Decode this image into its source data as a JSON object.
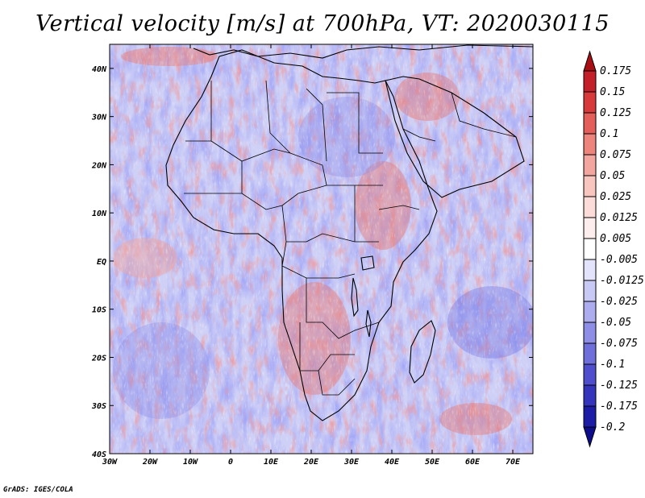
{
  "title": "Vertical velocity [m/s] at 700hPa, VT: 2020030115",
  "credit": "GrADS: IGES/COLA",
  "map": {
    "lon_range": [
      -30,
      75
    ],
    "lat_range": [
      -40,
      45
    ],
    "lon_ticks": [
      {
        "value": -30,
        "label": "30W"
      },
      {
        "value": -20,
        "label": "20W"
      },
      {
        "value": -10,
        "label": "10W"
      },
      {
        "value": 0,
        "label": "0"
      },
      {
        "value": 10,
        "label": "10E"
      },
      {
        "value": 20,
        "label": "20E"
      },
      {
        "value": 30,
        "label": "30E"
      },
      {
        "value": 40,
        "label": "40E"
      },
      {
        "value": 50,
        "label": "50E"
      },
      {
        "value": 60,
        "label": "60E"
      },
      {
        "value": 70,
        "label": "70E"
      }
    ],
    "lat_ticks": [
      {
        "value": 40,
        "label": "40N"
      },
      {
        "value": 30,
        "label": "30N"
      },
      {
        "value": 20,
        "label": "20N"
      },
      {
        "value": 10,
        "label": "10N"
      },
      {
        "value": 0,
        "label": "EQ"
      },
      {
        "value": -10,
        "label": "10S"
      },
      {
        "value": -20,
        "label": "20S"
      },
      {
        "value": -30,
        "label": "30S"
      },
      {
        "value": -40,
        "label": "40S"
      }
    ]
  },
  "colorbar": {
    "levels": [
      "0.175",
      "0.15",
      "0.125",
      "0.1",
      "0.075",
      "0.05",
      "0.025",
      "0.0125",
      "0.005",
      "-0.005",
      "-0.0125",
      "-0.025",
      "-0.05",
      "-0.075",
      "-0.1",
      "-0.125",
      "-0.175",
      "-0.2"
    ],
    "colors": [
      "#a80f15",
      "#c3202a",
      "#d83a3c",
      "#e45f5a",
      "#ee857d",
      "#f3a69f",
      "#f8c5bf",
      "#fbdcd8",
      "#fdeeed",
      "#ffffff",
      "#e3e3fb",
      "#c9c9f5",
      "#acacee",
      "#8e8ee6",
      "#6f6fdc",
      "#4f4fce",
      "#3434bc",
      "#1c1ca6",
      "#0d0d8c"
    ]
  }
}
